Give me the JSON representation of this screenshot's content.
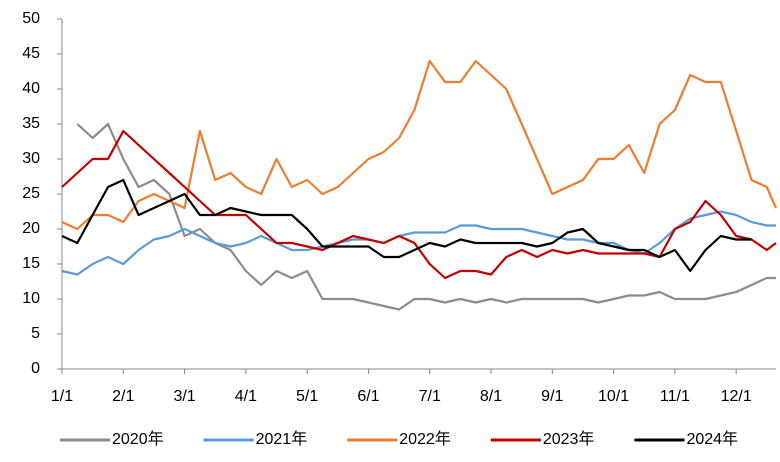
{
  "chart_data": {
    "type": "line",
    "x": [
      0,
      0.25,
      0.5,
      0.75,
      1,
      1.25,
      1.5,
      1.75,
      2,
      2.25,
      2.5,
      2.75,
      3,
      3.25,
      3.5,
      3.75,
      4,
      4.25,
      4.5,
      4.75,
      5,
      5.25,
      5.5,
      5.75,
      6,
      6.25,
      6.5,
      6.75,
      7,
      7.25,
      7.5,
      7.75,
      8,
      8.25,
      8.5,
      8.75,
      9,
      9.25,
      9.5,
      9.75,
      10,
      10.25,
      10.5,
      10.75,
      11,
      11.25,
      11.5,
      11.65
    ],
    "xlim": [
      0,
      11.65
    ],
    "xticks": [
      {
        "value": 0,
        "label": "1/1"
      },
      {
        "value": 1,
        "label": "2/1"
      },
      {
        "value": 2,
        "label": "3/1"
      },
      {
        "value": 3,
        "label": "4/1"
      },
      {
        "value": 4,
        "label": "5/1"
      },
      {
        "value": 5,
        "label": "6/1"
      },
      {
        "value": 6,
        "label": "7/1"
      },
      {
        "value": 7,
        "label": "8/1"
      },
      {
        "value": 8,
        "label": "9/1"
      },
      {
        "value": 9,
        "label": "10/1"
      },
      {
        "value": 10,
        "label": "11/1"
      },
      {
        "value": 11,
        "label": "12/1"
      }
    ],
    "ylim": [
      0,
      50
    ],
    "yticks": [
      0,
      5,
      10,
      15,
      20,
      25,
      30,
      35,
      40,
      45,
      50
    ],
    "grid": false,
    "legend": "bottom",
    "series": [
      {
        "name": "2020年",
        "color": "#8c8c8c",
        "values": [
          null,
          35,
          33,
          35,
          30,
          26,
          27,
          25,
          19,
          20,
          18,
          17,
          14,
          12,
          14,
          13,
          14,
          10,
          10,
          10,
          9.5,
          9,
          8.5,
          10,
          10,
          9.5,
          10,
          9.5,
          10,
          9.5,
          10,
          10,
          10,
          10,
          10,
          9.5,
          10,
          10.5,
          10.5,
          11,
          10,
          10,
          10,
          10.5,
          11,
          12,
          13,
          13
        ]
      },
      {
        "name": "2021年",
        "color": "#5b9bd5",
        "values": [
          14,
          13.5,
          15,
          16,
          15,
          17,
          18.5,
          19,
          20,
          19,
          18,
          17.5,
          18,
          19,
          18,
          17,
          17,
          17.5,
          18,
          18.5,
          18.5,
          18,
          19,
          19.5,
          19.5,
          19.5,
          20.5,
          20.5,
          20,
          20,
          20,
          19.5,
          19,
          18.5,
          18.5,
          18,
          18,
          17,
          16.5,
          18,
          20,
          21.5,
          22,
          22.5,
          22,
          21,
          20.5,
          20.5
        ]
      },
      {
        "name": "2022年",
        "color": "#ed7d31",
        "values": [
          21,
          20,
          22,
          22,
          21,
          24,
          25,
          24,
          23,
          34,
          27,
          28,
          26,
          25,
          30,
          26,
          27,
          25,
          26,
          28,
          30,
          31,
          33,
          37,
          44,
          41,
          41,
          44,
          42,
          40,
          35,
          30,
          25,
          26,
          27,
          30,
          30,
          32,
          28,
          35,
          37,
          42,
          41,
          41,
          34,
          27,
          26,
          23
        ]
      },
      {
        "name": "2023年",
        "color": "#c00000",
        "values": [
          26,
          28,
          30,
          30,
          34,
          32,
          30,
          28,
          26,
          24,
          22,
          22,
          22,
          20,
          18,
          18,
          17.5,
          17,
          18,
          19,
          18.5,
          18,
          19,
          18,
          15,
          13,
          14,
          14,
          13.5,
          16,
          17,
          16,
          17,
          16.5,
          17,
          16.5,
          16.5,
          16.5,
          16.5,
          16,
          20,
          21,
          24,
          22,
          19,
          18.5,
          17,
          18
        ]
      },
      {
        "name": "2024年",
        "color": "#000000",
        "values": [
          19,
          18,
          22,
          26,
          27,
          22,
          23,
          24,
          25,
          22,
          22,
          23,
          22.5,
          22,
          22,
          22,
          20,
          17.5,
          17.5,
          17.5,
          17.5,
          16,
          16,
          17,
          18,
          17.5,
          18.5,
          18,
          18,
          18,
          18,
          17.5,
          18,
          19.5,
          20,
          18,
          17.5,
          17,
          17,
          16,
          17,
          14,
          17,
          19,
          18.5,
          18.5,
          null,
          null
        ]
      }
    ]
  }
}
